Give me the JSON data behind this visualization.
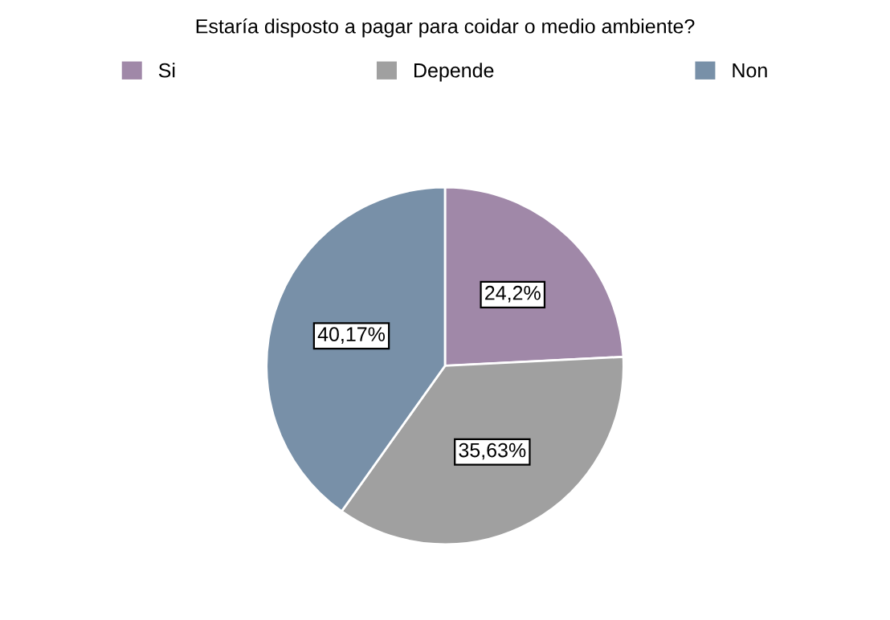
{
  "chart_data": {
    "type": "pie",
    "title": "Estaría disposto a pagar para coidar o medio ambiente?",
    "categories": [
      "Si",
      "Depende",
      "Non"
    ],
    "values": [
      24.2,
      35.63,
      40.17
    ],
    "colors": [
      "#a088a8",
      "#a0a0a0",
      "#7890a8"
    ],
    "value_labels": [
      "24,2%",
      "35,63%",
      "40,17%"
    ],
    "legend": "top"
  }
}
